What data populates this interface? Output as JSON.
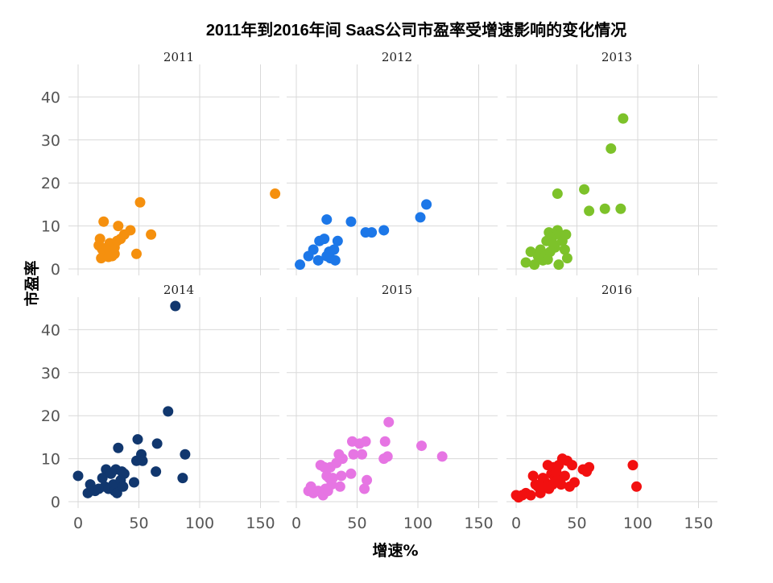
{
  "chart_data": {
    "type": "scatter",
    "title": "2011年到2016年间 SaaS公司市盈率受增速影响的变化情况",
    "xlabel": "增速%",
    "ylabel": "市盈率",
    "xlim": [
      -5,
      160
    ],
    "ylim": [
      -2,
      47
    ],
    "x_ticks": [
      0,
      50,
      100,
      150
    ],
    "y_ticks": [
      0,
      10,
      20,
      30,
      40
    ],
    "grid": true,
    "layout": "facet-2x3",
    "panels": [
      {
        "label": "2011",
        "color": "#F5900E",
        "points": [
          [
            21,
            11
          ],
          [
            18,
            7
          ],
          [
            17,
            5.5
          ],
          [
            19,
            5
          ],
          [
            20,
            4.5
          ],
          [
            22,
            4
          ],
          [
            23,
            3.5
          ],
          [
            24,
            5
          ],
          [
            26,
            6
          ],
          [
            28,
            3
          ],
          [
            30,
            3.5
          ],
          [
            30,
            5
          ],
          [
            32,
            6.5
          ],
          [
            33,
            10
          ],
          [
            35,
            7
          ],
          [
            38,
            8
          ],
          [
            43,
            9
          ],
          [
            48,
            3.5
          ],
          [
            51,
            15.5
          ],
          [
            60,
            8
          ],
          [
            162,
            17.5
          ],
          [
            19,
            2.5
          ],
          [
            25,
            2.8
          ]
        ]
      },
      {
        "label": "2012",
        "color": "#1C77E8",
        "points": [
          [
            3,
            1
          ],
          [
            10,
            3
          ],
          [
            14,
            4.5
          ],
          [
            18,
            2
          ],
          [
            19,
            6.5
          ],
          [
            23,
            7
          ],
          [
            25,
            11.5
          ],
          [
            25,
            3
          ],
          [
            28,
            2.5
          ],
          [
            31,
            4.5
          ],
          [
            32,
            2
          ],
          [
            34,
            6.5
          ],
          [
            45,
            11
          ],
          [
            57,
            8.5
          ],
          [
            62,
            8.5
          ],
          [
            72,
            9
          ],
          [
            102,
            12
          ],
          [
            107,
            15
          ],
          [
            27,
            4
          ]
        ]
      },
      {
        "label": "2013",
        "color": "#7DC22A",
        "points": [
          [
            8,
            1.5
          ],
          [
            12,
            4
          ],
          [
            15,
            1
          ],
          [
            18,
            3
          ],
          [
            20,
            4.5
          ],
          [
            22,
            2
          ],
          [
            24,
            3
          ],
          [
            25,
            6.5
          ],
          [
            27,
            8.5
          ],
          [
            28,
            4
          ],
          [
            30,
            7.5
          ],
          [
            32,
            5
          ],
          [
            34,
            9
          ],
          [
            34,
            17.5
          ],
          [
            35,
            1
          ],
          [
            36,
            8
          ],
          [
            38,
            6.5
          ],
          [
            40,
            4.5
          ],
          [
            41,
            8
          ],
          [
            42,
            2.5
          ],
          [
            56,
            18.5
          ],
          [
            60,
            13.5
          ],
          [
            73,
            14
          ],
          [
            78,
            28
          ],
          [
            86,
            14
          ],
          [
            88,
            35
          ],
          [
            26,
            2.2
          ],
          [
            30,
            6
          ]
        ]
      },
      {
        "label": "2014",
        "color": "#11376E",
        "points": [
          [
            0,
            6
          ],
          [
            8,
            2
          ],
          [
            10,
            4
          ],
          [
            14,
            2.5
          ],
          [
            17,
            3
          ],
          [
            20,
            5.5
          ],
          [
            22,
            3.5
          ],
          [
            23,
            7.5
          ],
          [
            25,
            3
          ],
          [
            27,
            6.5
          ],
          [
            29,
            4
          ],
          [
            30,
            2.5
          ],
          [
            31,
            7.5
          ],
          [
            32,
            2
          ],
          [
            33,
            12.5
          ],
          [
            35,
            5
          ],
          [
            36,
            7
          ],
          [
            37,
            3.5
          ],
          [
            38,
            6.5
          ],
          [
            46,
            4.5
          ],
          [
            48,
            9.5
          ],
          [
            49,
            14.5
          ],
          [
            52,
            11
          ],
          [
            53,
            9.5
          ],
          [
            64,
            7
          ],
          [
            65,
            13.5
          ],
          [
            74,
            21
          ],
          [
            80,
            45.5
          ],
          [
            86,
            5.5
          ],
          [
            88,
            11
          ]
        ]
      },
      {
        "label": "2015",
        "color": "#E675E3",
        "points": [
          [
            10,
            2.5
          ],
          [
            12,
            3.5
          ],
          [
            14,
            2
          ],
          [
            18,
            2.5
          ],
          [
            20,
            8.5
          ],
          [
            22,
            1.5
          ],
          [
            23,
            8
          ],
          [
            24,
            3
          ],
          [
            25,
            6
          ],
          [
            26,
            2.5
          ],
          [
            27,
            5.5
          ],
          [
            28,
            8
          ],
          [
            29,
            4
          ],
          [
            30,
            5.5
          ],
          [
            35,
            11
          ],
          [
            36,
            3.5
          ],
          [
            37,
            6
          ],
          [
            38,
            10
          ],
          [
            45,
            6.5
          ],
          [
            46,
            14
          ],
          [
            47,
            11
          ],
          [
            52,
            13.5
          ],
          [
            54,
            11
          ],
          [
            56,
            3
          ],
          [
            57,
            14
          ],
          [
            58,
            5
          ],
          [
            72,
            10
          ],
          [
            73,
            14
          ],
          [
            75,
            10.5
          ],
          [
            76,
            18.5
          ],
          [
            103,
            13
          ],
          [
            120,
            10.5
          ],
          [
            33,
            9
          ]
        ]
      },
      {
        "label": "2016",
        "color": "#F21010",
        "points": [
          [
            0,
            1.5
          ],
          [
            2,
            1
          ],
          [
            5,
            1.5
          ],
          [
            8,
            2
          ],
          [
            12,
            1.5
          ],
          [
            14,
            6
          ],
          [
            16,
            4
          ],
          [
            18,
            3.5
          ],
          [
            20,
            2
          ],
          [
            22,
            5.5
          ],
          [
            24,
            4.5
          ],
          [
            26,
            8.5
          ],
          [
            27,
            3
          ],
          [
            29,
            6.5
          ],
          [
            30,
            4
          ],
          [
            31,
            8
          ],
          [
            32,
            5.5
          ],
          [
            33,
            7
          ],
          [
            35,
            8.5
          ],
          [
            37,
            4
          ],
          [
            38,
            10
          ],
          [
            40,
            6
          ],
          [
            42,
            9.5
          ],
          [
            44,
            3.5
          ],
          [
            46,
            8.5
          ],
          [
            48,
            4.5
          ],
          [
            55,
            7.5
          ],
          [
            58,
            7
          ],
          [
            60,
            8
          ],
          [
            96,
            8.5
          ],
          [
            99,
            3.5
          ],
          [
            25,
            3.5
          ],
          [
            34,
            5
          ]
        ]
      }
    ]
  }
}
